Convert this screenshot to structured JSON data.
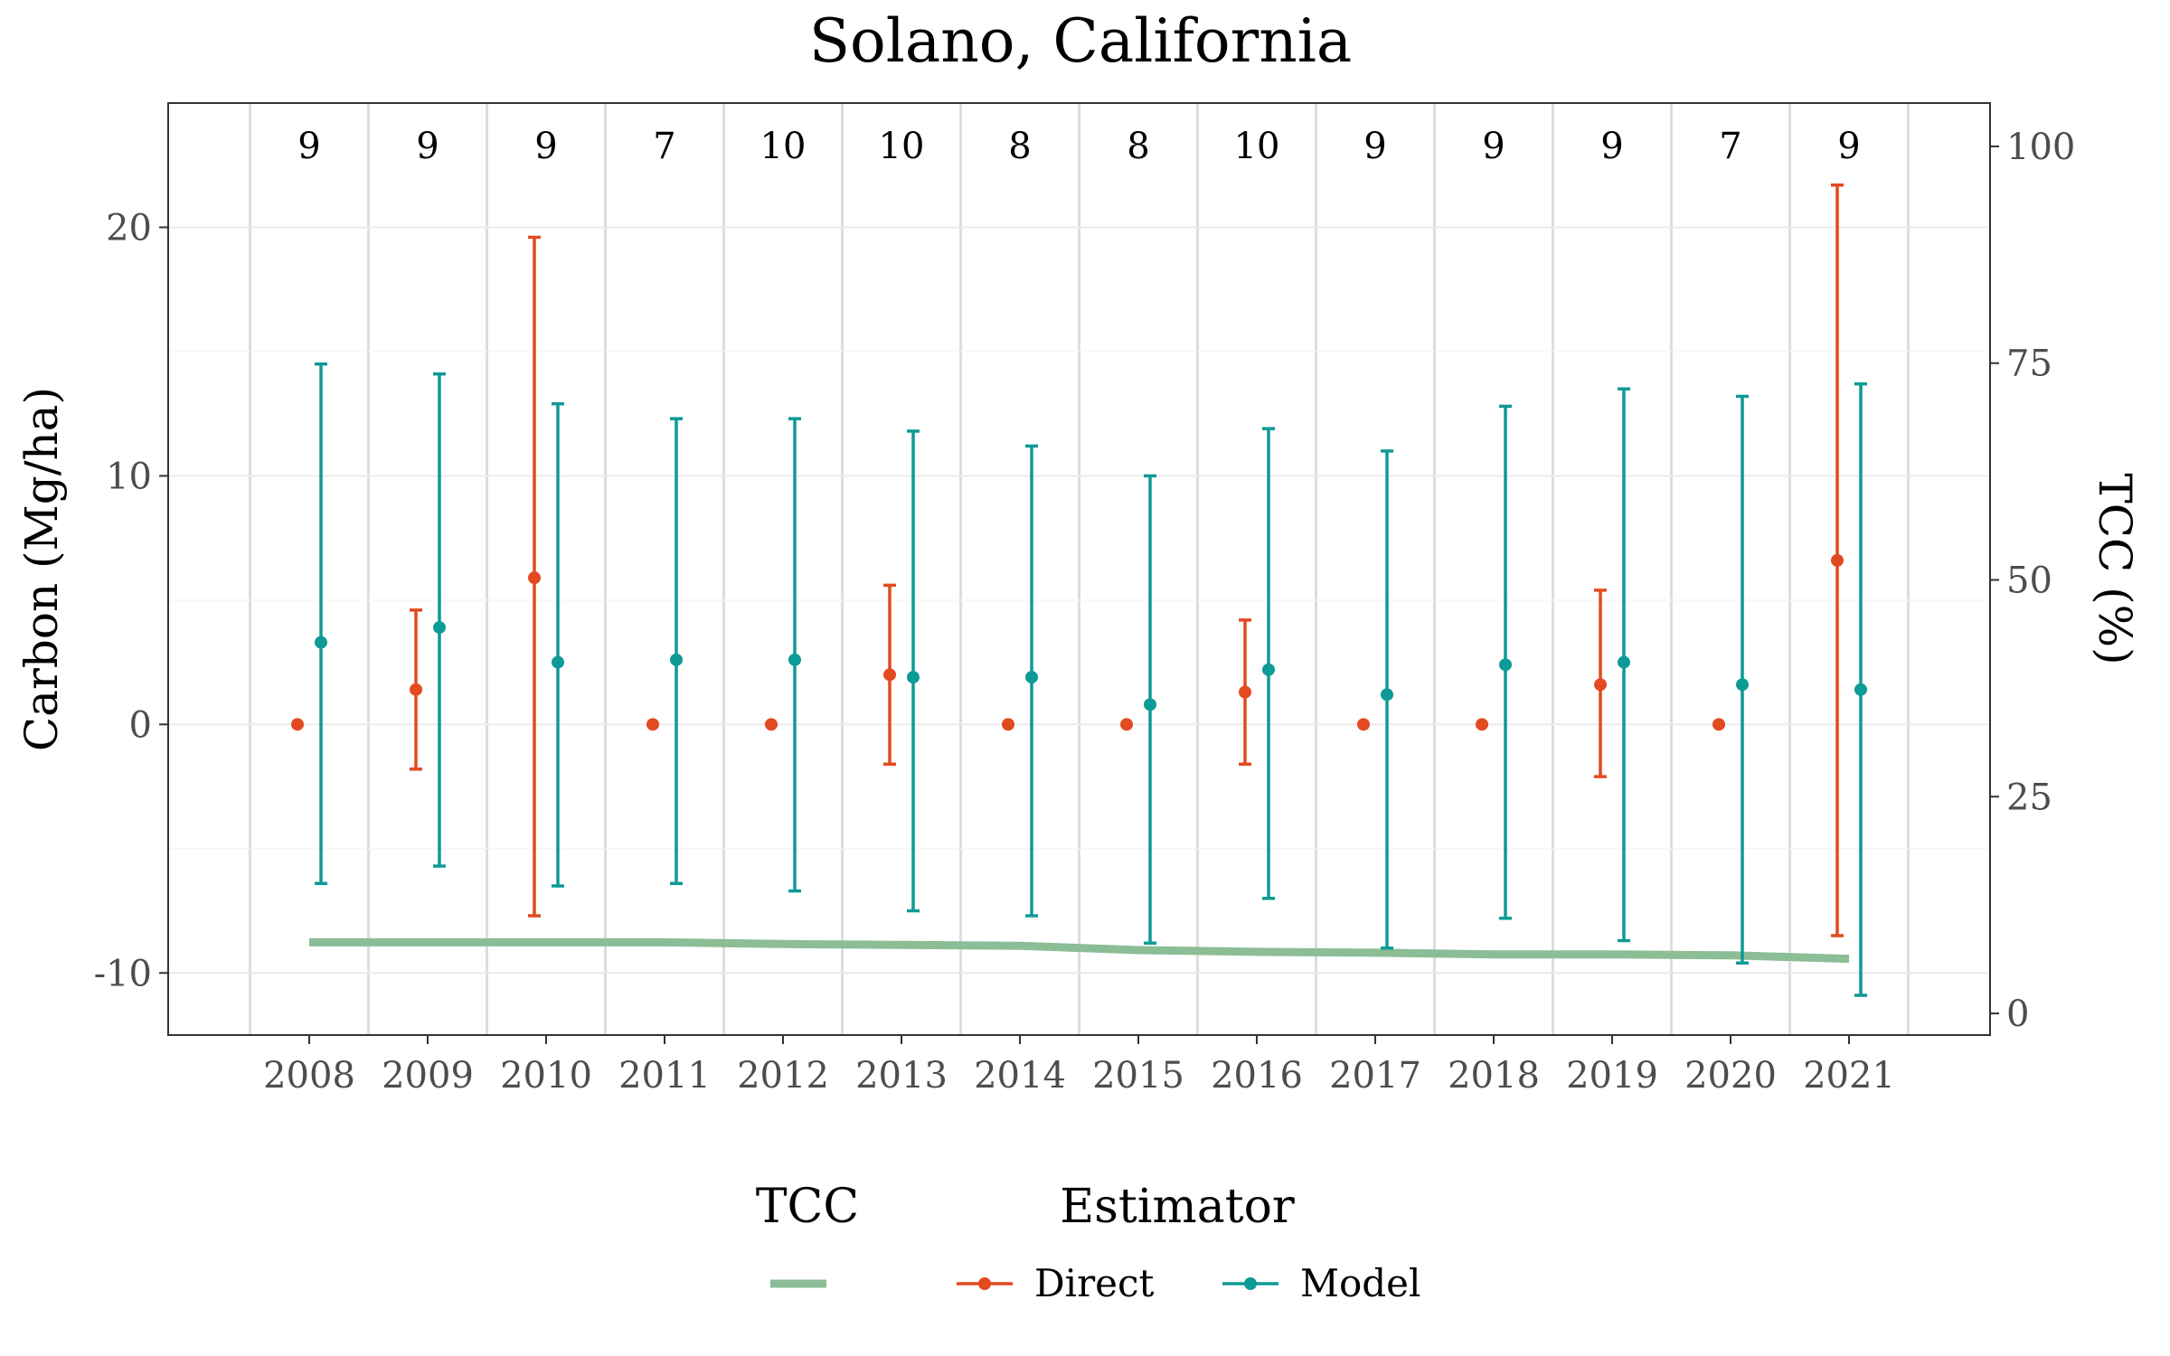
{
  "chart_data": {
    "type": "line",
    "title": "Solano, California",
    "ylabel": "Carbon (Mg/ha)",
    "y2label": "TCC (%)",
    "xlabel": "",
    "categories": [
      "2008",
      "2009",
      "2010",
      "2011",
      "2012",
      "2013",
      "2014",
      "2015",
      "2016",
      "2017",
      "2018",
      "2019",
      "2020",
      "2021"
    ],
    "sample_counts": [
      "9",
      "9",
      "9",
      "7",
      "10",
      "10",
      "8",
      "8",
      "10",
      "9",
      "9",
      "9",
      "7",
      "9"
    ],
    "ylim": [
      -12.5,
      25
    ],
    "y_ticks": [
      -10,
      0,
      10,
      20
    ],
    "y_tick_labels": [
      "-10",
      "0",
      "10",
      "20"
    ],
    "y2lim": [
      -2.5,
      105
    ],
    "y2_ticks": [
      0,
      25,
      50,
      75,
      100
    ],
    "y2_tick_labels": [
      "0",
      "25",
      "50",
      "75",
      "100"
    ],
    "grid": true,
    "legend_position": "bottom",
    "series": [
      {
        "name": "Direct",
        "color": "#E34A20",
        "kind": "point-errorbar",
        "values": [
          0,
          1.4,
          5.9,
          0,
          0,
          2.0,
          0,
          0,
          1.3,
          0,
          0,
          1.6,
          0,
          6.6
        ],
        "lower": [
          null,
          -1.8,
          -7.7,
          null,
          null,
          -1.6,
          null,
          null,
          -1.6,
          null,
          null,
          -2.1,
          null,
          -8.5
        ],
        "upper": [
          null,
          4.6,
          19.6,
          null,
          null,
          5.6,
          null,
          null,
          4.2,
          null,
          null,
          5.4,
          null,
          21.7
        ]
      },
      {
        "name": "Model",
        "color": "#0E9A96",
        "kind": "point-errorbar",
        "values": [
          3.3,
          3.9,
          2.5,
          2.6,
          2.6,
          1.9,
          1.9,
          0.8,
          2.2,
          1.2,
          2.4,
          2.5,
          1.6,
          1.4
        ],
        "lower": [
          -6.4,
          -5.7,
          -6.5,
          -6.4,
          -6.7,
          -7.5,
          -7.7,
          -8.8,
          -7.0,
          -9.0,
          -7.8,
          -8.7,
          -9.6,
          -10.9
        ],
        "upper": [
          14.5,
          14.1,
          12.9,
          12.3,
          12.3,
          11.8,
          11.2,
          10.0,
          11.9,
          11.0,
          12.8,
          13.5,
          13.2,
          13.7
        ]
      },
      {
        "name": "TCC",
        "color": "#8BBD96",
        "kind": "line",
        "axis": "right",
        "values": [
          8.2,
          8.2,
          8.2,
          8.2,
          8.0,
          7.9,
          7.8,
          7.3,
          7.1,
          7.0,
          6.8,
          6.8,
          6.7,
          6.3
        ]
      }
    ],
    "legend": {
      "groups": [
        {
          "title": "TCC",
          "items": [
            {
              "label": "",
              "series": "TCC"
            }
          ]
        },
        {
          "title": "Estimator",
          "items": [
            {
              "label": "Direct",
              "series": "Direct"
            },
            {
              "label": "Model",
              "series": "Model"
            }
          ]
        }
      ]
    }
  }
}
